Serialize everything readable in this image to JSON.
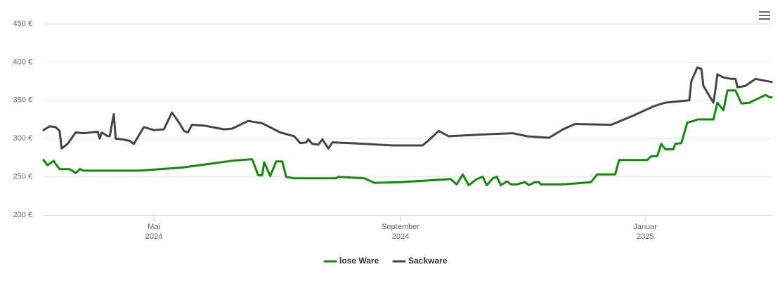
{
  "chart_data": {
    "type": "line",
    "xlim": [
      0,
      363
    ],
    "xticks": [
      {
        "value": 55,
        "label": "Mai",
        "sublabel": "2024"
      },
      {
        "value": 178,
        "label": "September",
        "sublabel": "2024"
      },
      {
        "value": 300,
        "label": "Januar",
        "sublabel": "2025"
      }
    ],
    "ylim": [
      200,
      450
    ],
    "yticks": [
      {
        "value": 200,
        "label": "200 €"
      },
      {
        "value": 250,
        "label": "250 €"
      },
      {
        "value": 300,
        "label": "300 €"
      },
      {
        "value": 350,
        "label": "350 €"
      },
      {
        "value": 400,
        "label": "400 €"
      },
      {
        "value": 450,
        "label": "450 €"
      }
    ],
    "grid": true,
    "legend": "bottom",
    "series": [
      {
        "name": "lose Ware",
        "color": "#138a07",
        "x": [
          0,
          2,
          5,
          6,
          8,
          13,
          16,
          18,
          20,
          48,
          69,
          83,
          94,
          104,
          107,
          109,
          110,
          113,
          116,
          119,
          121,
          125,
          146,
          147,
          160,
          165,
          178,
          203,
          206,
          209,
          212,
          216,
          219,
          221,
          224,
          226,
          228,
          231,
          233,
          236,
          240,
          242,
          245,
          247,
          248,
          259,
          273,
          276,
          285,
          287,
          289,
          301,
          303,
          306,
          308,
          310,
          314,
          315,
          318,
          321,
          324,
          326,
          334,
          336,
          339,
          341,
          345,
          348,
          352,
          360,
          362,
          363
        ],
        "values": [
          272,
          265,
          271,
          267,
          260,
          260,
          255,
          260,
          258,
          258,
          262,
          267,
          271,
          273,
          252,
          252,
          269,
          251,
          270,
          270,
          250,
          248,
          248,
          250,
          248,
          242,
          243,
          247,
          240,
          253,
          239,
          247,
          250,
          239,
          248,
          250,
          239,
          244,
          240,
          240,
          243,
          239,
          243,
          243,
          240,
          240,
          243,
          253,
          253,
          272,
          272,
          272,
          277,
          277,
          293,
          286,
          286,
          293,
          294,
          321,
          323,
          325,
          325,
          347,
          337,
          363,
          363,
          346,
          347,
          357,
          354,
          354
        ]
      },
      {
        "name": "Sackware",
        "color": "#434348",
        "x": [
          0,
          3,
          6,
          8,
          9,
          12,
          16,
          20,
          27,
          28,
          29,
          32,
          33,
          35,
          36,
          39,
          43,
          45,
          50,
          55,
          60,
          64,
          68,
          70,
          72,
          74,
          80,
          90,
          94,
          102,
          109,
          118,
          125,
          128,
          131,
          132,
          134,
          137,
          139,
          142,
          144,
          153,
          174,
          189,
          193,
          197,
          202,
          224,
          234,
          241,
          252,
          259,
          265,
          283,
          294,
          304,
          310,
          322,
          323,
          326,
          328,
          329,
          334,
          335,
          336,
          339,
          343,
          345,
          346,
          350,
          355,
          363
        ],
        "values": [
          311,
          316,
          315,
          310,
          287,
          293,
          308,
          307,
          309,
          300,
          308,
          303,
          303,
          332,
          300,
          299,
          297,
          293,
          315,
          311,
          312,
          334,
          319,
          310,
          308,
          318,
          317,
          312,
          313,
          323,
          320,
          308,
          303,
          294,
          295,
          299,
          293,
          292,
          299,
          287,
          295,
          294,
          291,
          291,
          300,
          310,
          303,
          306,
          307,
          303,
          301,
          312,
          319,
          318,
          330,
          342,
          347,
          350,
          375,
          393,
          391,
          369,
          347,
          364,
          384,
          380,
          378,
          378,
          367,
          369,
          378,
          374
        ]
      }
    ]
  }
}
